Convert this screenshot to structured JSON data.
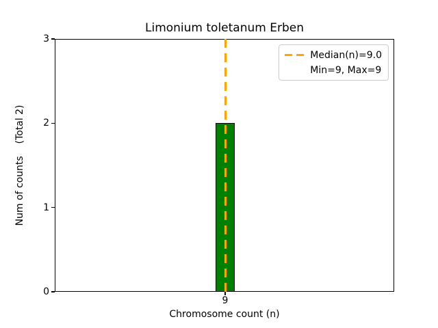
{
  "title": "Limonium toletanum Erben",
  "axes": {
    "xlabel": "Chromosome count (n)",
    "ylabel": "Num of counts    (Total 2)",
    "yticks": [
      0,
      1,
      2,
      3
    ],
    "xticks": [
      "9"
    ],
    "ylim": [
      0,
      3
    ]
  },
  "legend": {
    "items": [
      {
        "label": "Median(n)=9.0",
        "glyph": "dashed-line"
      },
      {
        "label": "Min=9, Max=9",
        "glyph": "none"
      }
    ]
  },
  "colors": {
    "bar_fill": "#008000",
    "bar_edge": "#000000",
    "median_line": "#FFA500",
    "legend_border": "#cccccc",
    "axis": "#000000",
    "background": "#ffffff"
  },
  "chart_data": {
    "type": "bar",
    "title": "Limonium toletanum Erben",
    "xlabel": "Chromosome count (n)",
    "ylabel": "Num of counts (Total 2)",
    "categories": [
      9
    ],
    "values": [
      2
    ],
    "total_counts": 2,
    "ylim": [
      0,
      3
    ],
    "yticks": [
      0,
      1,
      2,
      3
    ],
    "annotations": {
      "median_n": 9.0,
      "min_n": 9,
      "max_n": 9
    },
    "legend_position": "upper right",
    "grid": false
  }
}
